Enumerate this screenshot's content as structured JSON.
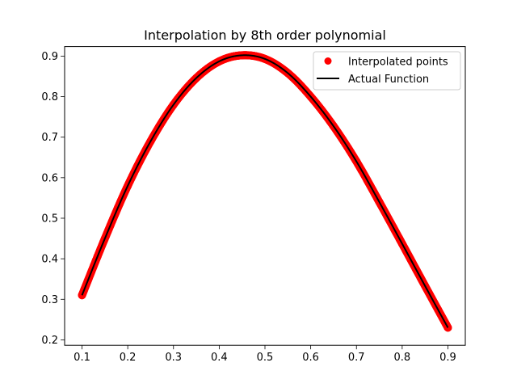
{
  "chart_data": {
    "type": "scatter",
    "title": "Interpolation by 8th order polynomial",
    "xlabel": "",
    "ylabel": "",
    "xlim": [
      0.062,
      0.938
    ],
    "ylim": [
      0.1865,
      0.9235
    ],
    "x_ticks": [
      0.1,
      0.2,
      0.3,
      0.4,
      0.5,
      0.6,
      0.7,
      0.8,
      0.9
    ],
    "x_tick_labels": [
      "0.1",
      "0.2",
      "0.3",
      "0.4",
      "0.5",
      "0.6",
      "0.7",
      "0.8",
      "0.9"
    ],
    "y_ticks": [
      0.2,
      0.3,
      0.4,
      0.5,
      0.6,
      0.7,
      0.8,
      0.9
    ],
    "y_tick_labels": [
      "0.2",
      "0.3",
      "0.4",
      "0.5",
      "0.6",
      "0.7",
      "0.8",
      "0.9"
    ],
    "grid": false,
    "legend_position": "top-right",
    "series": [
      {
        "name": "Interpolated points",
        "type": "scatter",
        "color": "#ff0000",
        "x": [
          0.1,
          0.15,
          0.2,
          0.25,
          0.3,
          0.35,
          0.4,
          0.45,
          0.5,
          0.55,
          0.6,
          0.65,
          0.7,
          0.75,
          0.8,
          0.85,
          0.9
        ],
        "y": [
          0.31,
          0.45,
          0.58,
          0.69,
          0.78,
          0.846,
          0.887,
          0.902,
          0.893,
          0.858,
          0.8,
          0.727,
          0.64,
          0.54,
          0.437,
          0.333,
          0.23
        ]
      },
      {
        "name": "Actual Function",
        "type": "line",
        "color": "#000000",
        "x": [
          0.1,
          0.15,
          0.2,
          0.25,
          0.3,
          0.35,
          0.4,
          0.45,
          0.5,
          0.55,
          0.6,
          0.65,
          0.7,
          0.75,
          0.8,
          0.85,
          0.9
        ],
        "y": [
          0.31,
          0.45,
          0.58,
          0.69,
          0.78,
          0.846,
          0.887,
          0.902,
          0.893,
          0.858,
          0.8,
          0.727,
          0.64,
          0.54,
          0.437,
          0.333,
          0.23
        ]
      }
    ]
  }
}
